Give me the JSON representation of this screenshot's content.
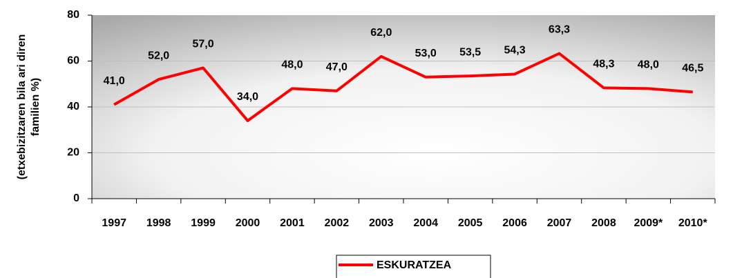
{
  "chart_data": {
    "type": "line",
    "ylabel": [
      "(etxebizitzaren bila ari diren",
      "familien %)"
    ],
    "categories": [
      "1997",
      "1998",
      "1999",
      "2000",
      "2001",
      "2002",
      "2003",
      "2004",
      "2005",
      "2006",
      "2007",
      "2008",
      "2009*",
      "2010*"
    ],
    "series": [
      {
        "name": "ESKURATZEA",
        "color": "#ff0000",
        "values": [
          41.0,
          52.0,
          57.0,
          34.0,
          48.0,
          47.0,
          62.0,
          53.0,
          53.5,
          54.3,
          63.3,
          48.3,
          48.0,
          46.5
        ],
        "value_labels": [
          "41,0",
          "52,0",
          "57,0",
          "34,0",
          "48,0",
          "47,0",
          "62,0",
          "53,0",
          "53,5",
          "54,3",
          "63,3",
          "48,3",
          "48,0",
          "46,5"
        ]
      }
    ],
    "ylim": [
      0,
      80
    ],
    "yticks": [
      0,
      20,
      40,
      60,
      80
    ],
    "grid": true,
    "legend": "bottom"
  }
}
